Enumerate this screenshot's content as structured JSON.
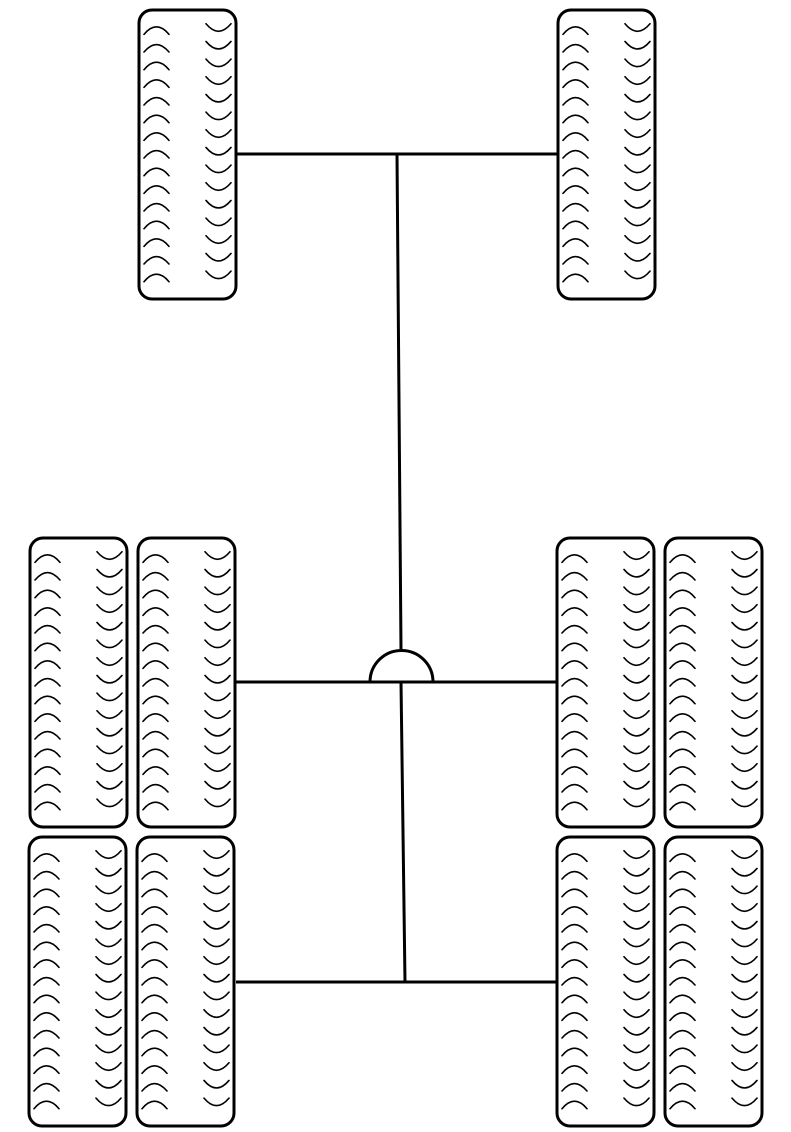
{
  "diagram": {
    "type": "vehicle-axle-layout",
    "axles": [
      {
        "name": "front-axle",
        "wheels_per_side": 1,
        "driven": false
      },
      {
        "name": "middle-axle",
        "wheels_per_side": 2,
        "driven": true
      },
      {
        "name": "rear-axle",
        "wheels_per_side": 2,
        "driven": false
      }
    ],
    "differential": {
      "location": "middle-axle",
      "shape": "half-circle"
    },
    "colors": {
      "stroke": "#000000",
      "fill": "#ffffff"
    }
  }
}
